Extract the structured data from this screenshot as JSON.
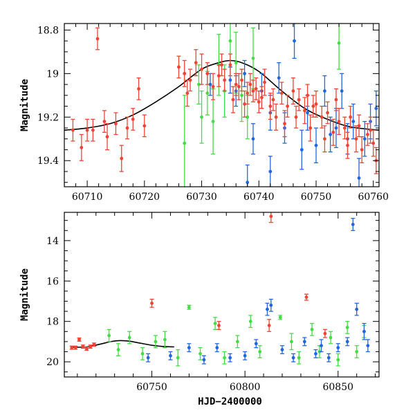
{
  "chart_data": [
    {
      "type": "scatter",
      "panel": "top",
      "title": "",
      "xlabel": "",
      "ylabel": "Magnitude",
      "xlim": [
        60706,
        60761
      ],
      "ylim": [
        19.52,
        18.77
      ],
      "y_inverted": true,
      "xticks": [
        60710,
        60720,
        60730,
        60740,
        60750,
        60760
      ],
      "xtick_labels": [
        "60710",
        "60720",
        "60730",
        "60740",
        "60750",
        "60760"
      ],
      "yticks": [
        18.8,
        19,
        19.2,
        19.4
      ],
      "ytick_labels": [
        "18.8",
        "19",
        "19.2",
        "19.4"
      ],
      "grid": false,
      "legend": "none",
      "colors": {
        "red": "#ee4433",
        "green": "#44dd44",
        "blue": "#2266dd",
        "fit": "#000000"
      },
      "model_curve": {
        "color": "#000000",
        "points": [
          [
            60706,
            19.26
          ],
          [
            60710,
            19.25
          ],
          [
            60714,
            19.23
          ],
          [
            60718,
            19.19
          ],
          [
            60722,
            19.13
          ],
          [
            60726,
            19.06
          ],
          [
            60730,
            18.98
          ],
          [
            60733,
            18.95
          ],
          [
            60735,
            18.94
          ],
          [
            60737,
            18.95
          ],
          [
            60740,
            18.99
          ],
          [
            60744,
            19.08
          ],
          [
            60748,
            19.16
          ],
          [
            60752,
            19.21
          ],
          [
            60756,
            19.245
          ],
          [
            60761,
            19.26
          ]
        ]
      },
      "series": [
        {
          "color": "red",
          "points": [
            [
              60707.5,
              19.26,
              0.05
            ],
            [
              60709,
              19.34,
              0.06
            ],
            [
              60710,
              19.26,
              0.05
            ],
            [
              60711,
              19.26,
              0.05
            ],
            [
              60711.8,
              18.84,
              0.05
            ],
            [
              60713,
              19.22,
              0.05
            ],
            [
              60713.5,
              19.29,
              0.06
            ],
            [
              60715,
              19.23,
              0.05
            ],
            [
              60716,
              19.39,
              0.06
            ],
            [
              60717,
              19.25,
              0.05
            ],
            [
              60718,
              19.21,
              0.05
            ],
            [
              60719,
              19.07,
              0.05
            ],
            [
              60720,
              19.24,
              0.05
            ],
            [
              60726,
              18.97,
              0.05
            ],
            [
              60727,
              19.0,
              0.06
            ],
            [
              60727.5,
              19.09,
              0.06
            ],
            [
              60728,
              19.03,
              0.05
            ],
            [
              60729,
              18.95,
              0.06
            ],
            [
              60730,
              18.98,
              0.07
            ],
            [
              60731,
              19.0,
              0.05
            ],
            [
              60732,
              19.06,
              0.06
            ],
            [
              60733,
              19.01,
              0.05
            ],
            [
              60733.5,
              18.96,
              0.05
            ],
            [
              60734,
              19.03,
              0.05
            ],
            [
              60735,
              18.96,
              0.05
            ],
            [
              60735.5,
              19.12,
              0.06
            ],
            [
              60736,
              19.05,
              0.05
            ],
            [
              60736.5,
              19.06,
              0.06
            ],
            [
              60737,
              19.03,
              0.05
            ],
            [
              60737.5,
              19.14,
              0.06
            ],
            [
              60738,
              19.09,
              0.05
            ],
            [
              60738.5,
              19.05,
              0.05
            ],
            [
              60739,
              19.08,
              0.05
            ],
            [
              60739.5,
              19.07,
              0.05
            ],
            [
              60740,
              19.13,
              0.05
            ],
            [
              60740.5,
              19.11,
              0.05
            ],
            [
              60741,
              19.04,
              0.06
            ],
            [
              60742,
              19.15,
              0.06
            ],
            [
              60742.5,
              19.12,
              0.05
            ],
            [
              60743,
              19.2,
              0.06
            ],
            [
              60744,
              19.09,
              0.05
            ],
            [
              60744.5,
              19.23,
              0.06
            ],
            [
              60745,
              19.15,
              0.05
            ],
            [
              60746,
              19.08,
              0.06
            ],
            [
              60746.5,
              19.2,
              0.05
            ],
            [
              60747,
              19.12,
              0.05
            ],
            [
              60748,
              19.17,
              0.06
            ],
            [
              60748.5,
              19.1,
              0.05
            ],
            [
              60749,
              19.25,
              0.06
            ],
            [
              60749.5,
              19.15,
              0.05
            ],
            [
              60750,
              19.14,
              0.06
            ],
            [
              60751,
              19.2,
              0.05
            ],
            [
              60751.5,
              19.3,
              0.06
            ],
            [
              60752,
              19.18,
              0.05
            ],
            [
              60753,
              19.27,
              0.06
            ],
            [
              60753.5,
              19.12,
              0.05
            ],
            [
              60754,
              19.22,
              0.06
            ],
            [
              60755,
              19.25,
              0.05
            ],
            [
              60755.5,
              19.33,
              0.06
            ],
            [
              60756,
              19.2,
              0.05
            ],
            [
              60757,
              19.3,
              0.06
            ],
            [
              60757.5,
              19.24,
              0.05
            ],
            [
              60758,
              19.35,
              0.06
            ],
            [
              60759,
              19.28,
              0.05
            ],
            [
              60759.5,
              19.26,
              0.06
            ],
            [
              60760,
              19.32,
              0.06
            ],
            [
              60760.5,
              19.4,
              0.06
            ]
          ]
        },
        {
          "color": "green",
          "points": [
            [
              60727,
              19.32,
              0.22
            ],
            [
              60729.5,
              19.05,
              0.09
            ],
            [
              60730,
              19.2,
              0.12
            ],
            [
              60731,
              19.09,
              0.1
            ],
            [
              60732,
              19.22,
              0.15
            ],
            [
              60733,
              18.96,
              0.14
            ],
            [
              60734,
              19.08,
              0.12
            ],
            [
              60735,
              18.85,
              0.12
            ],
            [
              60736,
              18.95,
              0.14
            ],
            [
              60737,
              19.1,
              0.12
            ],
            [
              60738,
              19.2,
              0.1
            ],
            [
              60739,
              18.93,
              0.14
            ],
            [
              60754,
              18.86,
              0.12
            ]
          ]
        },
        {
          "color": "blue",
          "points": [
            [
              60731.5,
              19.05,
              0.05
            ],
            [
              60735,
              19.03,
              0.06
            ],
            [
              60736,
              19.08,
              0.07
            ],
            [
              60737.5,
              19.0,
              0.06
            ],
            [
              60739,
              19.3,
              0.07
            ],
            [
              60740.5,
              19.08,
              0.08
            ],
            [
              60742,
              19.18,
              0.08
            ],
            [
              60743.5,
              19.02,
              0.07
            ],
            [
              60744.5,
              19.25,
              0.07
            ],
            [
              60746.2,
              18.85,
              0.08
            ],
            [
              60747.5,
              19.35,
              0.09
            ],
            [
              60748.5,
              19.18,
              0.08
            ],
            [
              60750,
              19.33,
              0.08
            ],
            [
              60751.5,
              19.08,
              0.07
            ],
            [
              60752.5,
              19.28,
              0.08
            ],
            [
              60753.5,
              19.25,
              0.09
            ],
            [
              60754.5,
              19.08,
              0.08
            ],
            [
              60755.5,
              19.3,
              0.07
            ],
            [
              60756.5,
              19.22,
              0.08
            ],
            [
              60757.5,
              19.48,
              0.09
            ],
            [
              60758.5,
              19.3,
              0.08
            ],
            [
              60759.5,
              19.22,
              0.08
            ],
            [
              60760.5,
              19.16,
              0.08
            ],
            [
              60738,
              19.5,
              0.08
            ],
            [
              60742,
              19.45,
              0.07
            ]
          ]
        }
      ]
    },
    {
      "type": "scatter",
      "panel": "bottom",
      "title": "",
      "xlabel": "HJD−2400000",
      "ylabel": "Magnitude",
      "xlim": [
        60703,
        60872
      ],
      "ylim": [
        20.75,
        12.6
      ],
      "y_inverted": true,
      "xticks": [
        60750,
        60800,
        60850
      ],
      "xtick_labels": [
        "60750",
        "60800",
        "60850"
      ],
      "yticks": [
        14,
        16,
        18,
        20
      ],
      "ytick_labels": [
        "14",
        "16",
        "18",
        "20"
      ],
      "grid": false,
      "legend": "none",
      "colors": {
        "red": "#ee4433",
        "green": "#44dd44",
        "blue": "#2266dd",
        "fit": "#000000"
      },
      "model_curve": {
        "color": "#000000",
        "points": [
          [
            60707,
            19.28
          ],
          [
            60715,
            19.26
          ],
          [
            60722,
            19.13
          ],
          [
            60728,
            19.0
          ],
          [
            60733,
            18.95
          ],
          [
            60738,
            18.98
          ],
          [
            60744,
            19.08
          ],
          [
            60750,
            19.18
          ],
          [
            60756,
            19.24
          ],
          [
            60762,
            19.26
          ]
        ]
      },
      "series": [
        {
          "color": "red",
          "points": [
            [
              60707,
              19.3,
              0.08
            ],
            [
              60709,
              19.3,
              0.08
            ],
            [
              60711,
              18.9,
              0.08
            ],
            [
              60713,
              19.25,
              0.08
            ],
            [
              60715,
              19.35,
              0.08
            ],
            [
              60717,
              19.25,
              0.08
            ],
            [
              60719,
              19.15,
              0.08
            ],
            [
              60750,
              17.1,
              0.2
            ],
            [
              60786,
              18.2,
              0.2
            ],
            [
              60813,
              18.2,
              0.3
            ],
            [
              60814,
              12.8,
              0.3
            ],
            [
              60833,
              16.8,
              0.15
            ],
            [
              60843,
              18.6,
              0.2
            ]
          ]
        },
        {
          "color": "green",
          "points": [
            [
              60727,
              18.7,
              0.3
            ],
            [
              60732,
              19.4,
              0.3
            ],
            [
              60738,
              18.8,
              0.3
            ],
            [
              60745,
              19.6,
              0.3
            ],
            [
              60752,
              19.0,
              0.3
            ],
            [
              60757,
              18.9,
              0.4
            ],
            [
              60764,
              19.8,
              0.4
            ],
            [
              60770,
              17.3,
              0.1
            ],
            [
              60776,
              19.6,
              0.3
            ],
            [
              60784,
              18.1,
              0.3
            ],
            [
              60789,
              19.8,
              0.3
            ],
            [
              60796,
              19.0,
              0.3
            ],
            [
              60803,
              18.0,
              0.3
            ],
            [
              60808,
              19.5,
              0.3
            ],
            [
              60819,
              17.8,
              0.1
            ],
            [
              60825,
              19.0,
              0.4
            ],
            [
              60829,
              19.8,
              0.3
            ],
            [
              60836,
              18.4,
              0.3
            ],
            [
              60840,
              19.5,
              0.3
            ],
            [
              60846,
              18.8,
              0.3
            ],
            [
              60850,
              19.9,
              0.3
            ],
            [
              60855,
              18.3,
              0.3
            ],
            [
              60860,
              19.5,
              0.3
            ],
            [
              60864,
              18.5,
              0.3
            ]
          ]
        },
        {
          "color": "blue",
          "points": [
            [
              60748,
              19.8,
              0.2
            ],
            [
              60760,
              19.7,
              0.2
            ],
            [
              60770,
              19.3,
              0.2
            ],
            [
              60778,
              19.9,
              0.2
            ],
            [
              60785,
              19.3,
              0.2
            ],
            [
              60792,
              19.8,
              0.2
            ],
            [
              60800,
              19.7,
              0.2
            ],
            [
              60806,
              19.1,
              0.2
            ],
            [
              60812,
              17.4,
              0.3
            ],
            [
              60814,
              17.2,
              0.3
            ],
            [
              60820,
              19.4,
              0.2
            ],
            [
              60826,
              19.8,
              0.2
            ],
            [
              60832,
              19.0,
              0.2
            ],
            [
              60838,
              19.6,
              0.2
            ],
            [
              60841,
              19.2,
              0.3
            ],
            [
              60845,
              19.8,
              0.2
            ],
            [
              60850,
              19.3,
              0.2
            ],
            [
              60855,
              19.0,
              0.2
            ],
            [
              60858,
              13.2,
              0.3
            ],
            [
              60860,
              17.4,
              0.3
            ],
            [
              60864,
              18.5,
              0.4
            ],
            [
              60866,
              19.2,
              0.3
            ]
          ]
        }
      ]
    }
  ]
}
